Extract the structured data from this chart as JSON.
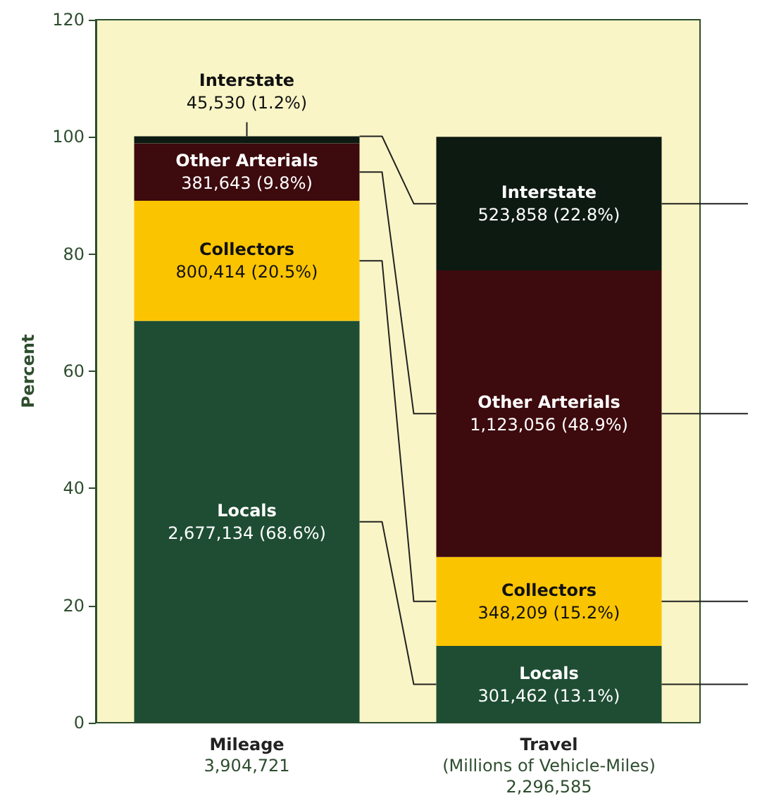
{
  "chart_data": {
    "type": "bar",
    "stacked": true,
    "ylabel": "Percent",
    "categories": [
      "Mileage\n3,904,721",
      "Travel\n(Millions of Vehicle-Miles)\n2,296,585"
    ],
    "series": [
      {
        "name": "Locals",
        "color": "#1e4d33",
        "values": [
          68.6,
          13.1
        ],
        "value_labels": [
          "2,677,134 (68.6%)",
          "301,462 (13.1%)"
        ]
      },
      {
        "name": "Collectors",
        "color": "#fbc400",
        "values": [
          20.5,
          15.2
        ],
        "value_labels": [
          "800,414 (20.5%)",
          "348,209 (15.2%)"
        ]
      },
      {
        "name": "Other Arterials",
        "color": "#3d0a0e",
        "values": [
          9.8,
          48.9
        ],
        "value_labels": [
          "381,643 (9.8%)",
          "1,123,056 (48.9%)"
        ]
      },
      {
        "name": "Interstate",
        "color": "#0d1a12",
        "values": [
          1.2,
          22.8
        ],
        "value_labels": [
          "45,530 (1.2%)",
          "523,858 (22.8%)"
        ]
      }
    ],
    "ylim": [
      0,
      120
    ],
    "yticks": [
      0,
      20,
      40,
      60,
      80,
      100,
      120
    ],
    "grid": false,
    "legend": false
  }
}
